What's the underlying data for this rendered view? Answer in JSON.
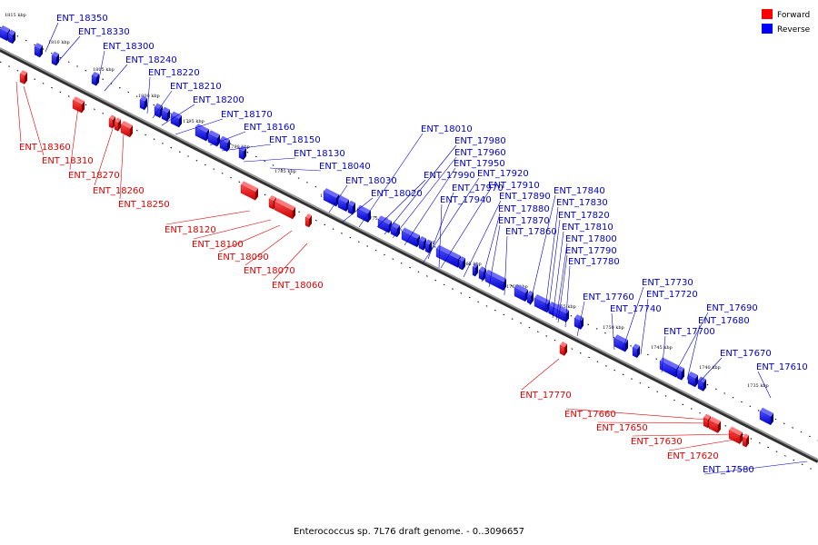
{
  "caption": "Enterococcus sp. 7L76 draft genome. - 0..3096657",
  "legend": [
    {
      "label": "Forward",
      "color": "#ff0000"
    },
    {
      "label": "Reverse",
      "color": "#0000ff"
    }
  ],
  "colors": {
    "forward": "#ff0000",
    "reverse": "#0000ff",
    "forward_label": "#e00000",
    "reverse_label": "#0000cc",
    "backbone": "#808080"
  },
  "kbp_ticks": [
    "1815 kbp",
    "1810 kbp",
    "1805 kbp",
    "1800 kbp",
    "1795 kbp",
    "1790 kbp",
    "1785 kbp",
    "1780 kbp",
    "1775 kbp",
    "1770 kbp",
    "1765 kbp",
    "1760 kbp",
    "1755 kbp",
    "1750 kbp",
    "1745 kbp",
    "1740 kbp",
    "1735 kbp"
  ],
  "reverse_genes": [
    "ENT_18350",
    "ENT_18330",
    "ENT_18300",
    "ENT_18240",
    "ENT_18220",
    "ENT_18210",
    "ENT_18200",
    "ENT_18170",
    "ENT_18160",
    "ENT_18150",
    "ENT_18130",
    "ENT_18040",
    "ENT_18030",
    "ENT_18020",
    "ENT_18010",
    "ENT_17980",
    "ENT_17960",
    "ENT_17950",
    "ENT_17990",
    "ENT_17920",
    "ENT_17970",
    "ENT_17910",
    "ENT_17940",
    "ENT_17890",
    "ENT_17880",
    "ENT_17870",
    "ENT_17860",
    "ENT_17840",
    "ENT_17830",
    "ENT_17820",
    "ENT_17810",
    "ENT_17800",
    "ENT_17790",
    "ENT_17780",
    "ENT_17760",
    "ENT_17740",
    "ENT_17730",
    "ENT_17720",
    "ENT_17700",
    "ENT_17690",
    "ENT_17680",
    "ENT_17670",
    "ENT_17610",
    "ENT_17580"
  ],
  "forward_genes": [
    "ENT_18360",
    "ENT_18310",
    "ENT_18270",
    "ENT_18260",
    "ENT_18250",
    "ENT_18120",
    "ENT_18100",
    "ENT_18090",
    "ENT_18070",
    "ENT_18060",
    "ENT_17770",
    "ENT_17660",
    "ENT_17650",
    "ENT_17630",
    "ENT_17620"
  ]
}
